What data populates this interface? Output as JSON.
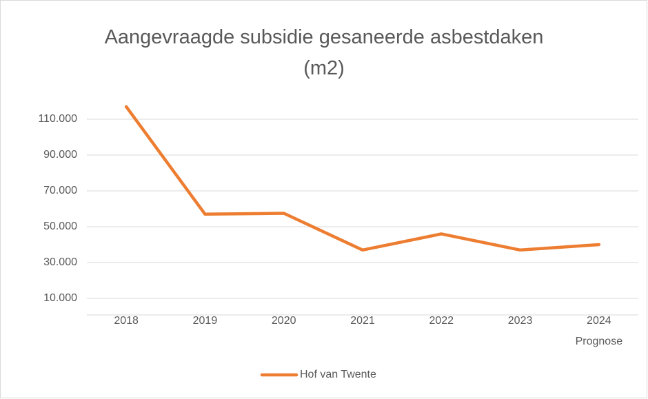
{
  "chart_data": {
    "type": "line",
    "title": "Aangevraagde subsidie gesaneerde asbestdaken (m2)",
    "categories": [
      "2018",
      "2019",
      "2020",
      "2021",
      "2022",
      "2023",
      "2024 Prognose"
    ],
    "series": [
      {
        "name": "Hof van Twente",
        "color": "#ed7d31",
        "values": [
          117000,
          57000,
          57500,
          37000,
          46000,
          37000,
          40000
        ]
      }
    ],
    "ylim": [
      0,
      120000
    ],
    "yticks": [
      {
        "value": 10000,
        "label": "10.000"
      },
      {
        "value": 30000,
        "label": "30.000"
      },
      {
        "value": 50000,
        "label": "50.000"
      },
      {
        "value": 70000,
        "label": "70.000"
      },
      {
        "value": 90000,
        "label": "90.000"
      },
      {
        "value": 110000,
        "label": "110.000"
      }
    ],
    "grid": true,
    "legend": "bottom"
  }
}
